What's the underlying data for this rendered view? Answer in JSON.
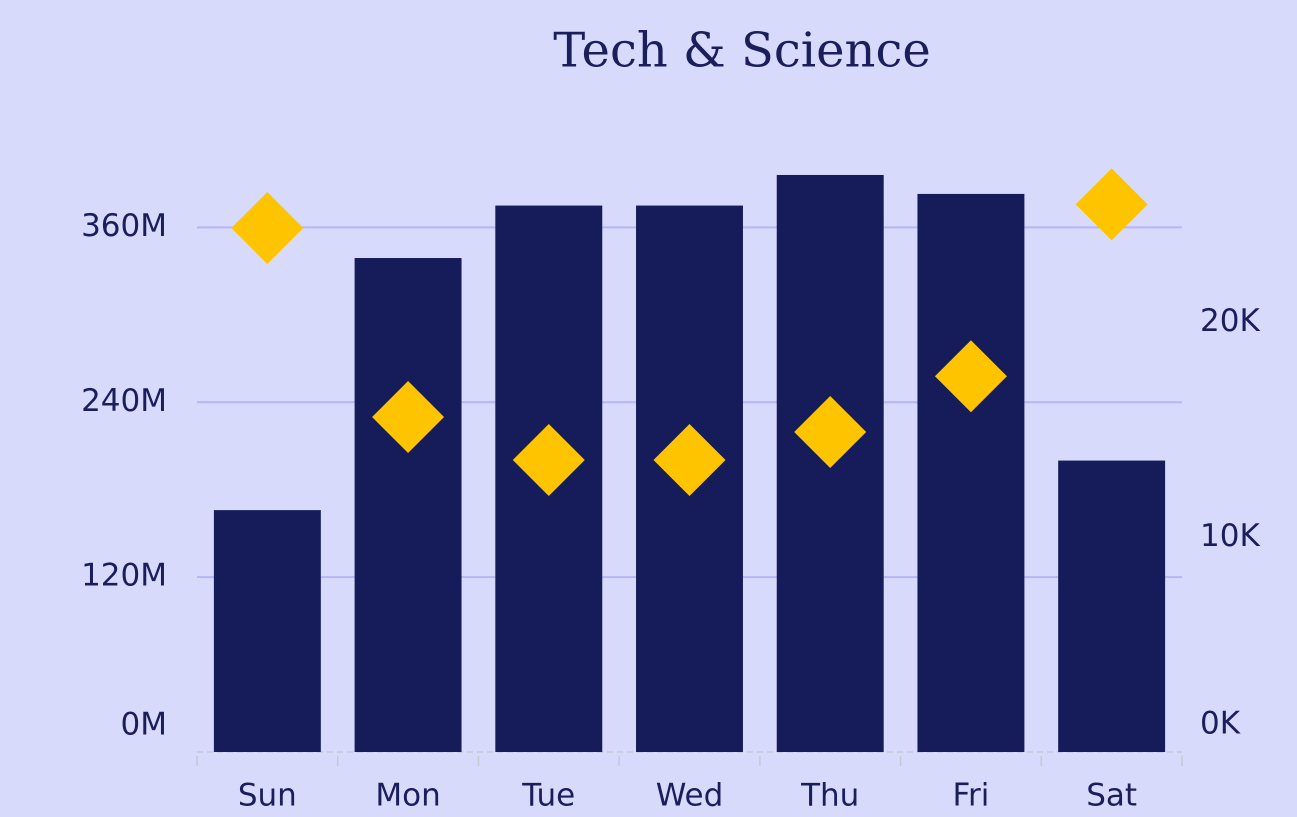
{
  "chart_data": {
    "type": "bar_dot",
    "title": "Tech & Science",
    "categories": [
      "Sun",
      "Mon",
      "Tue",
      "Wed",
      "Thu",
      "Fri",
      "Sat"
    ],
    "series": [
      {
        "type": "bar",
        "color": "#161c5a",
        "values": [
          166000000,
          339000000,
          375000000,
          375000000,
          396000000,
          383000000,
          200000000
        ]
      },
      {
        "type": "diamond",
        "axis": "y2",
        "color": "#ffc400",
        "values": [
          24400,
          15600,
          13600,
          13600,
          14900,
          17500,
          25500
        ]
      }
    ],
    "ylim": [
      0,
      420000000
    ],
    "yticks": [
      {
        "value": 0,
        "label": "0M"
      },
      {
        "value": 120000000,
        "label": "120M"
      },
      {
        "value": 240000000,
        "label": "240M"
      },
      {
        "value": 360000000,
        "label": "360M"
      }
    ],
    "y2lim": [
      0,
      28500
    ],
    "y2ticks": [
      {
        "value": 0,
        "label": "0K"
      },
      {
        "value": 10000,
        "label": "10K"
      },
      {
        "value": 20000,
        "label": "20K"
      }
    ],
    "grid": true
  }
}
